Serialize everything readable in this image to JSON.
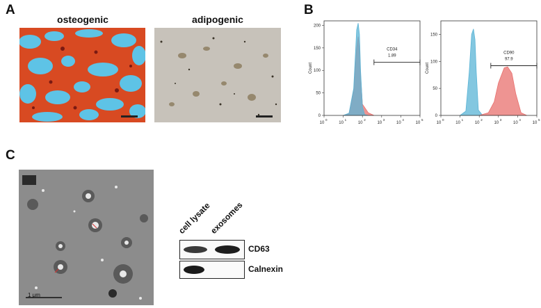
{
  "panels": {
    "A": {
      "letter": "A",
      "osteogenic": {
        "title": "osteogenic"
      },
      "adipogenic": {
        "title": "adipogenic"
      }
    },
    "B": {
      "letter": "B",
      "plots": [
        {
          "ylabel": "Count",
          "yticks": [
            "0",
            "50",
            "100",
            "150",
            "200"
          ],
          "ymax": 210,
          "marker": "CD34",
          "percent": "1.89",
          "control_color": "#5ab4d6",
          "sample_color": "#e8706e"
        },
        {
          "ylabel": "Count",
          "yticks": [
            "0",
            "50",
            "100",
            "150"
          ],
          "ymax": 175,
          "marker": "CD90",
          "percent": "97.9",
          "control_color": "#5ab4d6",
          "sample_color": "#e8706e"
        }
      ],
      "xticks": [
        "10",
        "10",
        "10",
        "10",
        "10",
        "10"
      ],
      "xtick_exponents": [
        "0",
        "1",
        "2",
        "3",
        "4",
        "5"
      ]
    },
    "C": {
      "letter": "C",
      "scale_bar": "1 μm",
      "lanes": [
        "cell lysate",
        "exosomes"
      ],
      "bands": [
        {
          "label": "CD63"
        },
        {
          "label": "Calnexin"
        }
      ]
    }
  },
  "chart_data": [
    {
      "type": "area",
      "title": "",
      "xlabel": "",
      "ylabel": "Count",
      "xscale": "log",
      "xlim": [
        1,
        100000
      ],
      "ylim": [
        0,
        210
      ],
      "gate_label": "CD34",
      "gate_percent": 1.89,
      "gate_range": [
        400,
        100000
      ],
      "series": [
        {
          "name": "",
          "x": [
            10,
            20,
            35,
            50,
            60,
            70,
            80,
            100,
            130,
            200
          ],
          "values": [
            0,
            5,
            60,
            190,
            205,
            180,
            100,
            20,
            2,
            0
          ]
        },
        {
          "name": "",
          "x": [
            10,
            20,
            35,
            50,
            60,
            70,
            80,
            100,
            150,
            200,
            400
          ],
          "values": [
            0,
            4,
            55,
            150,
            175,
            150,
            90,
            25,
            14,
            6,
            0
          ]
        }
      ]
    },
    {
      "type": "area",
      "title": "",
      "xlabel": "",
      "ylabel": "Count",
      "xscale": "log",
      "xlim": [
        1,
        100000
      ],
      "ylim": [
        0,
        175
      ],
      "gate_label": "CD90",
      "gate_percent": 97.9,
      "gate_range": [
        400,
        100000
      ],
      "series": [
        {
          "name": "",
          "x": [
            10,
            20,
            30,
            40,
            50,
            60,
            70,
            90,
            150
          ],
          "values": [
            0,
            8,
            80,
            150,
            160,
            140,
            80,
            10,
            0
          ]
        },
        {
          "name": "",
          "x": [
            100,
            300,
            600,
            1000,
            2000,
            3000,
            5000,
            8000,
            15000,
            30000
          ],
          "values": [
            0,
            5,
            25,
            60,
            88,
            90,
            78,
            40,
            5,
            0
          ]
        }
      ]
    }
  ]
}
